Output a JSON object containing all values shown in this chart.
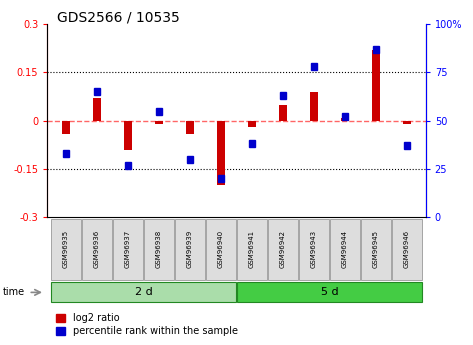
{
  "title": "GDS2566 / 10535",
  "samples": [
    "GSM96935",
    "GSM96936",
    "GSM96937",
    "GSM96938",
    "GSM96939",
    "GSM96940",
    "GSM96941",
    "GSM96942",
    "GSM96943",
    "GSM96944",
    "GSM96945",
    "GSM96946"
  ],
  "log2_ratio": [
    -0.04,
    0.07,
    -0.09,
    -0.01,
    -0.04,
    -0.2,
    -0.02,
    0.05,
    0.09,
    0.01,
    0.22,
    -0.01
  ],
  "percentile_rank": [
    33,
    65,
    27,
    55,
    30,
    20,
    38,
    63,
    78,
    52,
    87,
    37
  ],
  "groups": [
    {
      "label": "2 d",
      "start": 0,
      "end": 6,
      "color": "#aaddaa"
    },
    {
      "label": "5 d",
      "start": 6,
      "end": 12,
      "color": "#44cc44"
    }
  ],
  "ylim_left": [
    -0.3,
    0.3
  ],
  "ylim_right": [
    0,
    100
  ],
  "yticks_left": [
    -0.3,
    -0.15,
    0,
    0.15,
    0.3
  ],
  "yticks_right": [
    0,
    25,
    50,
    75,
    100
  ],
  "bar_color_red": "#CC0000",
  "bar_color_blue": "#0000CC",
  "time_label": "time",
  "legend_red": "log2 ratio",
  "legend_blue": "percentile rank within the sample",
  "bg_color": "#FFFFFF",
  "zero_line_color": "#FF6666",
  "title_fontsize": 10,
  "tick_fontsize": 7,
  "label_fontsize": 8,
  "sample_fontsize": 5
}
